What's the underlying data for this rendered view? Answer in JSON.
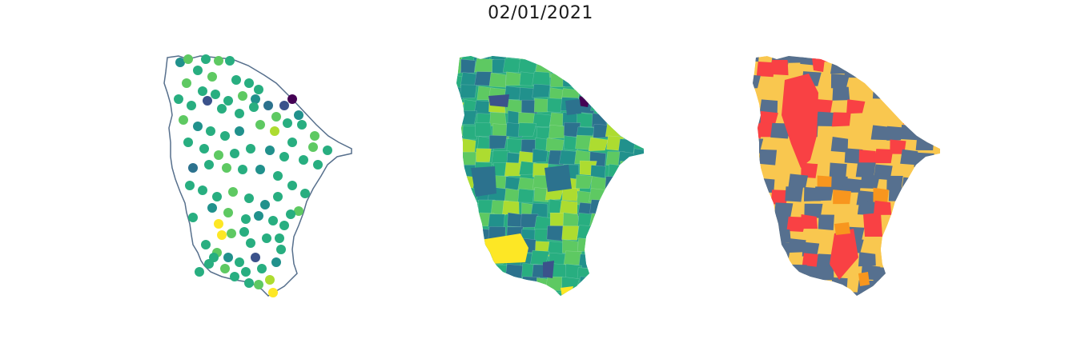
{
  "figure": {
    "title": "02/01/2021"
  },
  "colors": {
    "outline": "#566f8c",
    "viridis": [
      "#440154",
      "#3b528b",
      "#2c728e",
      "#21918c",
      "#28ae80",
      "#5ec962",
      "#addc30",
      "#fde725"
    ],
    "classes": {
      "slate": "#56708f",
      "yellow": "#f9c74f",
      "orange": "#f8961e",
      "red": "#f94144"
    }
  },
  "panels": [
    {
      "name": "station-points-map",
      "type": "point-map"
    },
    {
      "name": "municipality-choropleth-map",
      "type": "choropleth-viridis"
    },
    {
      "name": "municipality-class-map",
      "type": "choropleth-categorical"
    }
  ]
}
